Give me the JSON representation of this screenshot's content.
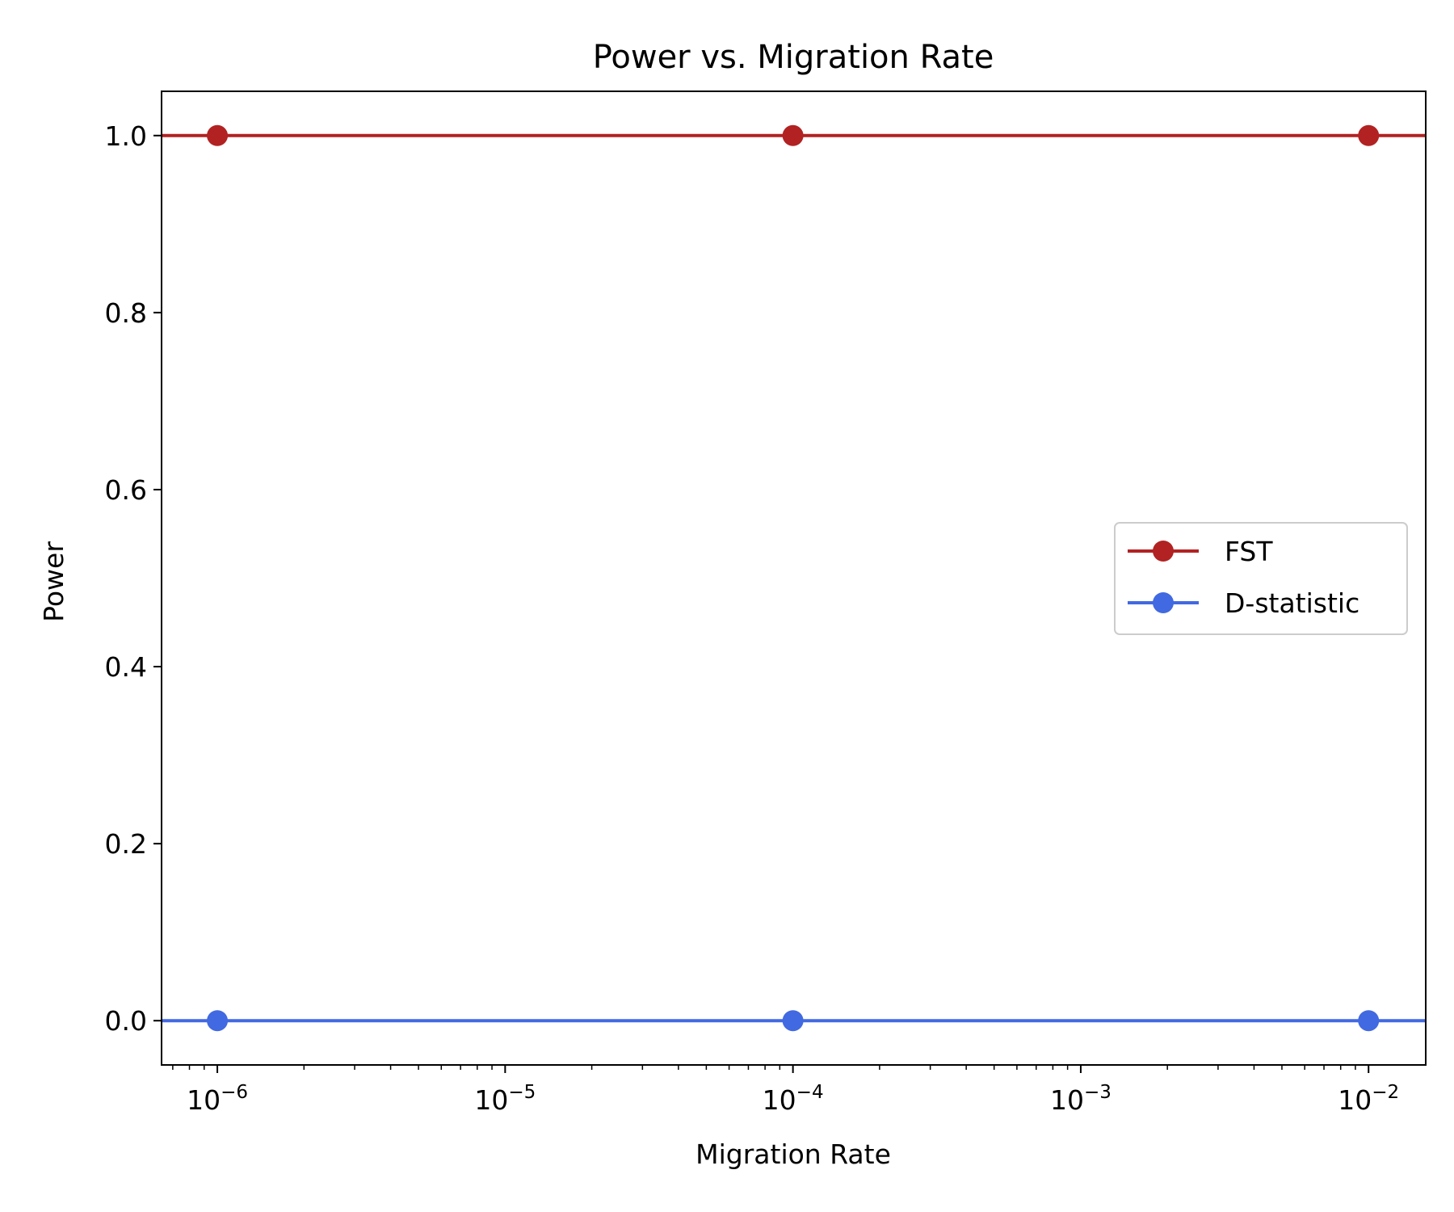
{
  "chart_data": {
    "type": "line",
    "title": "Power vs. Migration Rate",
    "xlabel": "Migration Rate",
    "ylabel": "Power",
    "xscale": "log",
    "x": [
      1e-06,
      0.0001,
      0.01
    ],
    "xlim": [
      6.4e-07,
      0.0158
    ],
    "ylim": [
      -0.05,
      1.05
    ],
    "x_ticks": [
      {
        "base": "10",
        "exp": "−6",
        "value": 1e-06
      },
      {
        "base": "10",
        "exp": "−5",
        "value": 1e-05
      },
      {
        "base": "10",
        "exp": "−4",
        "value": 0.0001
      },
      {
        "base": "10",
        "exp": "−3",
        "value": 0.001
      },
      {
        "base": "10",
        "exp": "−2",
        "value": 0.01
      }
    ],
    "y_ticks": [
      "0.0",
      "0.2",
      "0.4",
      "0.6",
      "0.8",
      "1.0"
    ],
    "grid": false,
    "legend_position": "center-right",
    "series": [
      {
        "name": "FST",
        "values": [
          1.0,
          1.0,
          1.0
        ],
        "color": "#b22222"
      },
      {
        "name": "D-statistic",
        "values": [
          0.0,
          0.0,
          0.0
        ],
        "color": "#4169e1"
      }
    ]
  }
}
